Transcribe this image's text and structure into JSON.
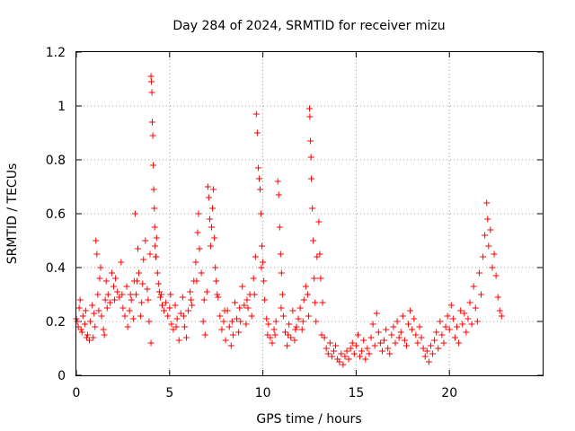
{
  "chart_data": {
    "type": "scatter",
    "title": "Day 284 of 2024, SRMTID for receiver mizu",
    "xlabel": "GPS time / hours",
    "ylabel": "SRMTID / TECUs",
    "xlim": [
      0,
      25
    ],
    "ylim": [
      0,
      1.2
    ],
    "xticks": [
      "0",
      "5",
      "10",
      "15",
      "20"
    ],
    "xtick_values": [
      0,
      5,
      10,
      15,
      20
    ],
    "yticks": [
      "0",
      "0.2",
      "0.4",
      "0.6",
      "0.8",
      "1",
      "1.2"
    ],
    "ytick_values": [
      0,
      0.2,
      0.4,
      0.6,
      0.8,
      1.0,
      1.2
    ],
    "grid": true,
    "marker": "plus",
    "color": "#ff0000",
    "series": [
      {
        "name": "SRMTID",
        "points": [
          [
            0.0,
            0.21
          ],
          [
            0.1,
            0.18
          ],
          [
            0.15,
            0.25
          ],
          [
            0.2,
            0.28
          ],
          [
            0.3,
            0.16
          ],
          [
            0.35,
            0.22
          ],
          [
            0.45,
            0.19
          ],
          [
            0.5,
            0.24
          ],
          [
            0.6,
            0.15
          ],
          [
            0.7,
            0.13
          ],
          [
            0.75,
            0.2
          ],
          [
            0.85,
            0.26
          ],
          [
            0.9,
            0.14
          ],
          [
            1.0,
            0.18
          ],
          [
            1.05,
            0.5
          ],
          [
            1.1,
            0.45
          ],
          [
            1.15,
            0.3
          ],
          [
            1.2,
            0.24
          ],
          [
            1.3,
            0.4
          ],
          [
            1.35,
            0.22
          ],
          [
            1.45,
            0.17
          ],
          [
            1.5,
            0.15
          ],
          [
            1.55,
            0.28
          ],
          [
            1.6,
            0.35
          ],
          [
            1.7,
            0.3
          ],
          [
            1.8,
            0.27
          ],
          [
            1.9,
            0.38
          ],
          [
            2.0,
            0.33
          ],
          [
            2.1,
            0.36
          ],
          [
            2.2,
            0.31
          ],
          [
            2.3,
            0.29
          ],
          [
            2.4,
            0.42
          ],
          [
            2.5,
            0.25
          ],
          [
            2.6,
            0.22
          ],
          [
            2.7,
            0.33
          ],
          [
            2.75,
            0.18
          ],
          [
            2.85,
            0.24
          ],
          [
            2.95,
            0.28
          ],
          [
            3.05,
            0.21
          ],
          [
            3.1,
            0.35
          ],
          [
            3.15,
            0.6
          ],
          [
            3.2,
            0.3
          ],
          [
            3.3,
            0.47
          ],
          [
            3.35,
            0.38
          ],
          [
            3.45,
            0.22
          ],
          [
            3.5,
            0.27
          ],
          [
            3.6,
            0.43
          ],
          [
            3.7,
            0.5
          ],
          [
            3.8,
            0.32
          ],
          [
            3.85,
            0.28
          ],
          [
            3.9,
            0.2
          ],
          [
            4.0,
            0.12
          ],
          [
            4.0,
            1.11
          ],
          [
            4.02,
            1.09
          ],
          [
            4.05,
            1.05
          ],
          [
            4.07,
            0.94
          ],
          [
            4.1,
            0.89
          ],
          [
            4.12,
            0.78
          ],
          [
            4.15,
            0.69
          ],
          [
            4.18,
            0.62
          ],
          [
            4.2,
            0.55
          ],
          [
            4.22,
            0.48
          ],
          [
            4.25,
            0.44
          ],
          [
            4.3,
            0.51
          ],
          [
            4.35,
            0.38
          ],
          [
            4.4,
            0.34
          ],
          [
            4.45,
            0.31
          ],
          [
            4.5,
            0.29
          ],
          [
            4.6,
            0.26
          ],
          [
            4.7,
            0.24
          ],
          [
            4.8,
            0.27
          ],
          [
            4.9,
            0.22
          ],
          [
            5.0,
            0.25
          ],
          [
            5.1,
            0.19
          ],
          [
            5.2,
            0.17
          ],
          [
            5.3,
            0.26
          ],
          [
            5.4,
            0.21
          ],
          [
            5.5,
            0.13
          ],
          [
            5.6,
            0.23
          ],
          [
            5.7,
            0.29
          ],
          [
            5.8,
            0.18
          ],
          [
            5.9,
            0.14
          ],
          [
            6.0,
            0.24
          ],
          [
            6.1,
            0.31
          ],
          [
            6.2,
            0.26
          ],
          [
            6.3,
            0.35
          ],
          [
            6.4,
            0.42
          ],
          [
            6.5,
            0.53
          ],
          [
            6.55,
            0.6
          ],
          [
            6.6,
            0.47
          ],
          [
            6.7,
            0.38
          ],
          [
            6.8,
            0.2
          ],
          [
            6.9,
            0.15
          ],
          [
            7.0,
            0.31
          ],
          [
            7.05,
            0.7
          ],
          [
            7.1,
            0.66
          ],
          [
            7.15,
            0.58
          ],
          [
            7.2,
            0.48
          ],
          [
            7.3,
            0.62
          ],
          [
            7.35,
            0.69
          ],
          [
            7.4,
            0.51
          ],
          [
            7.45,
            0.4
          ],
          [
            7.5,
            0.35
          ],
          [
            7.6,
            0.29
          ],
          [
            7.7,
            0.22
          ],
          [
            7.8,
            0.17
          ],
          [
            7.9,
            0.2
          ],
          [
            8.0,
            0.13
          ],
          [
            8.1,
            0.24
          ],
          [
            8.2,
            0.18
          ],
          [
            8.3,
            0.11
          ],
          [
            8.4,
            0.15
          ],
          [
            8.5,
            0.27
          ],
          [
            8.6,
            0.21
          ],
          [
            8.7,
            0.16
          ],
          [
            8.8,
            0.2
          ],
          [
            8.9,
            0.33
          ],
          [
            9.0,
            0.26
          ],
          [
            9.1,
            0.19
          ],
          [
            9.2,
            0.25
          ],
          [
            9.3,
            0.3
          ],
          [
            9.4,
            0.22
          ],
          [
            9.5,
            0.36
          ],
          [
            9.6,
            0.44
          ],
          [
            9.65,
            0.97
          ],
          [
            9.7,
            0.9
          ],
          [
            9.75,
            0.77
          ],
          [
            9.8,
            0.73
          ],
          [
            9.85,
            0.69
          ],
          [
            9.9,
            0.6
          ],
          [
            9.95,
            0.48
          ],
          [
            10.0,
            0.42
          ],
          [
            10.05,
            0.35
          ],
          [
            10.1,
            0.28
          ],
          [
            10.2,
            0.21
          ],
          [
            10.3,
            0.19
          ],
          [
            10.4,
            0.14
          ],
          [
            10.5,
            0.12
          ],
          [
            10.6,
            0.17
          ],
          [
            10.7,
            0.2
          ],
          [
            10.8,
            0.72
          ],
          [
            10.85,
            0.67
          ],
          [
            10.9,
            0.55
          ],
          [
            10.95,
            0.45
          ],
          [
            11.0,
            0.38
          ],
          [
            11.05,
            0.3
          ],
          [
            11.1,
            0.22
          ],
          [
            11.2,
            0.16
          ],
          [
            11.3,
            0.11
          ],
          [
            11.4,
            0.19
          ],
          [
            11.5,
            0.14
          ],
          [
            11.6,
            0.24
          ],
          [
            11.7,
            0.13
          ],
          [
            11.8,
            0.18
          ],
          [
            11.9,
            0.21
          ],
          [
            12.0,
            0.25
          ],
          [
            12.1,
            0.17
          ],
          [
            12.2,
            0.28
          ],
          [
            12.3,
            0.33
          ],
          [
            12.4,
            0.3
          ],
          [
            12.5,
            0.99
          ],
          [
            12.52,
            0.96
          ],
          [
            12.55,
            0.87
          ],
          [
            12.58,
            0.81
          ],
          [
            12.6,
            0.73
          ],
          [
            12.65,
            0.62
          ],
          [
            12.7,
            0.5
          ],
          [
            12.75,
            0.36
          ],
          [
            12.8,
            0.27
          ],
          [
            12.9,
            0.44
          ],
          [
            13.0,
            0.57
          ],
          [
            13.05,
            0.45
          ],
          [
            13.1,
            0.36
          ],
          [
            13.2,
            0.27
          ],
          [
            13.3,
            0.14
          ],
          [
            13.4,
            0.1
          ],
          [
            13.5,
            0.08
          ],
          [
            13.6,
            0.12
          ],
          [
            13.7,
            0.07
          ],
          [
            13.8,
            0.09
          ],
          [
            13.9,
            0.11
          ],
          [
            14.0,
            0.06
          ],
          [
            14.1,
            0.05
          ],
          [
            14.2,
            0.08
          ],
          [
            14.3,
            0.04
          ],
          [
            14.4,
            0.07
          ],
          [
            14.5,
            0.09
          ],
          [
            14.6,
            0.06
          ],
          [
            14.7,
            0.1
          ],
          [
            14.8,
            0.12
          ],
          [
            14.9,
            0.08
          ],
          [
            15.0,
            0.11
          ],
          [
            15.1,
            0.15
          ],
          [
            15.2,
            0.07
          ],
          [
            15.3,
            0.09
          ],
          [
            15.4,
            0.13
          ],
          [
            15.5,
            0.06
          ],
          [
            15.6,
            0.1
          ],
          [
            15.7,
            0.08
          ],
          [
            15.8,
            0.14
          ],
          [
            15.9,
            0.19
          ],
          [
            16.0,
            0.11
          ],
          [
            16.1,
            0.23
          ],
          [
            16.2,
            0.16
          ],
          [
            16.3,
            0.12
          ],
          [
            16.4,
            0.09
          ],
          [
            16.5,
            0.13
          ],
          [
            16.6,
            0.17
          ],
          [
            16.7,
            0.1
          ],
          [
            16.8,
            0.08
          ],
          [
            16.9,
            0.15
          ],
          [
            17.0,
            0.18
          ],
          [
            17.1,
            0.12
          ],
          [
            17.2,
            0.2
          ],
          [
            17.3,
            0.14
          ],
          [
            17.4,
            0.16
          ],
          [
            17.5,
            0.22
          ],
          [
            17.6,
            0.13
          ],
          [
            17.7,
            0.11
          ],
          [
            17.8,
            0.19
          ],
          [
            17.9,
            0.24
          ],
          [
            18.0,
            0.17
          ],
          [
            18.1,
            0.21
          ],
          [
            18.2,
            0.15
          ],
          [
            18.3,
            0.12
          ],
          [
            18.4,
            0.18
          ],
          [
            18.5,
            0.14
          ],
          [
            18.6,
            0.1
          ],
          [
            18.7,
            0.07
          ],
          [
            18.8,
            0.09
          ],
          [
            18.9,
            0.05
          ],
          [
            19.0,
            0.11
          ],
          [
            19.1,
            0.08
          ],
          [
            19.2,
            0.13
          ],
          [
            19.3,
            0.16
          ],
          [
            19.4,
            0.1
          ],
          [
            19.5,
            0.2
          ],
          [
            19.6,
            0.15
          ],
          [
            19.7,
            0.12
          ],
          [
            19.8,
            0.18
          ],
          [
            19.9,
            0.22
          ],
          [
            20.0,
            0.17
          ],
          [
            20.1,
            0.26
          ],
          [
            20.2,
            0.21
          ],
          [
            20.3,
            0.14
          ],
          [
            20.4,
            0.18
          ],
          [
            20.5,
            0.12
          ],
          [
            20.6,
            0.24
          ],
          [
            20.7,
            0.19
          ],
          [
            20.8,
            0.23
          ],
          [
            20.9,
            0.16
          ],
          [
            21.0,
            0.21
          ],
          [
            21.1,
            0.27
          ],
          [
            21.2,
            0.19
          ],
          [
            21.3,
            0.33
          ],
          [
            21.4,
            0.25
          ],
          [
            21.5,
            0.2
          ],
          [
            21.6,
            0.38
          ],
          [
            21.7,
            0.3
          ],
          [
            21.8,
            0.44
          ],
          [
            21.9,
            0.52
          ],
          [
            22.0,
            0.64
          ],
          [
            22.05,
            0.58
          ],
          [
            22.1,
            0.48
          ],
          [
            22.2,
            0.54
          ],
          [
            22.3,
            0.4
          ],
          [
            22.4,
            0.45
          ],
          [
            22.5,
            0.37
          ],
          [
            22.6,
            0.29
          ],
          [
            22.7,
            0.24
          ],
          [
            22.8,
            0.22
          ],
          [
            0.05,
            0.2
          ],
          [
            0.25,
            0.17
          ],
          [
            0.55,
            0.14
          ],
          [
            0.95,
            0.23
          ],
          [
            1.25,
            0.36
          ],
          [
            1.65,
            0.25
          ],
          [
            2.05,
            0.28
          ],
          [
            2.45,
            0.3
          ],
          [
            2.9,
            0.3
          ],
          [
            3.25,
            0.35
          ],
          [
            3.55,
            0.34
          ],
          [
            3.95,
            0.45
          ],
          [
            4.28,
            0.44
          ],
          [
            4.55,
            0.3
          ],
          [
            5.05,
            0.3
          ],
          [
            5.35,
            0.18
          ],
          [
            5.75,
            0.22
          ],
          [
            6.15,
            0.28
          ],
          [
            6.45,
            0.35
          ],
          [
            6.85,
            0.28
          ],
          [
            7.25,
            0.55
          ],
          [
            7.55,
            0.3
          ],
          [
            7.95,
            0.24
          ],
          [
            8.35,
            0.2
          ],
          [
            8.75,
            0.25
          ],
          [
            9.15,
            0.28
          ],
          [
            9.55,
            0.3
          ],
          [
            9.92,
            0.4
          ],
          [
            10.25,
            0.15
          ],
          [
            10.65,
            0.15
          ],
          [
            10.98,
            0.25
          ],
          [
            11.35,
            0.15
          ],
          [
            11.75,
            0.17
          ],
          [
            12.15,
            0.2
          ],
          [
            12.45,
            0.22
          ],
          [
            12.85,
            0.2
          ],
          [
            13.15,
            0.15
          ]
        ]
      }
    ]
  }
}
